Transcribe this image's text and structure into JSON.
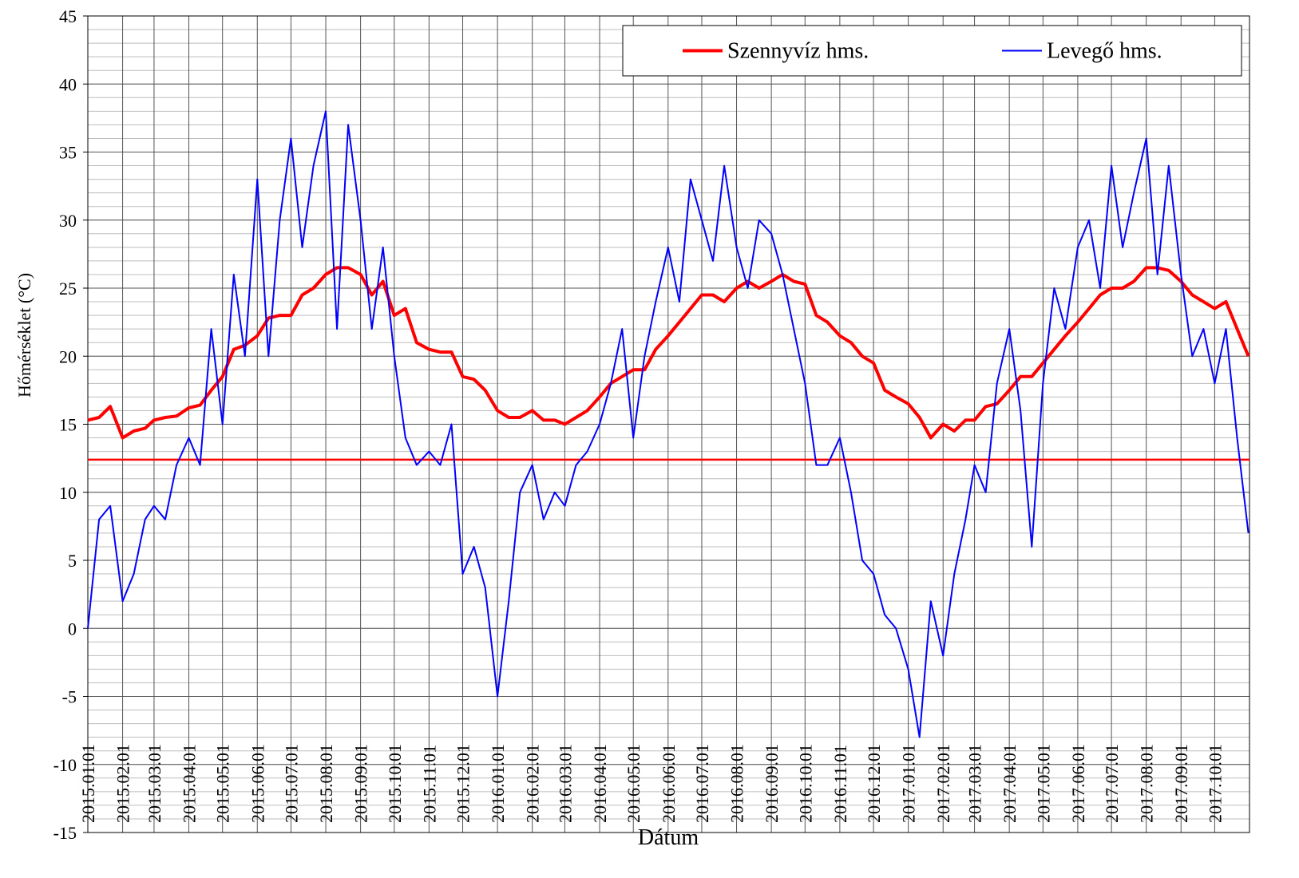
{
  "chart_data": {
    "type": "line",
    "xlabel": "Dátum",
    "ylabel": "Hőmérséklet (°C)",
    "x": [
      "2015.01.01",
      "2015.01.11",
      "2015.01.21",
      "2015.02.01",
      "2015.02.11",
      "2015.02.21",
      "2015.03.01",
      "2015.03.11",
      "2015.03.21",
      "2015.04.01",
      "2015.04.11",
      "2015.04.21",
      "2015.05.01",
      "2015.05.11",
      "2015.05.21",
      "2015.06.01",
      "2015.06.11",
      "2015.06.21",
      "2015.07.01",
      "2015.07.11",
      "2015.07.21",
      "2015.08.01",
      "2015.08.11",
      "2015.08.21",
      "2015.09.01",
      "2015.09.11",
      "2015.09.21",
      "2015.10.01",
      "2015.10.11",
      "2015.10.21",
      "2015.11.01",
      "2015.11.11",
      "2015.11.21",
      "2015.12.01",
      "2015.12.11",
      "2015.12.21",
      "2016.01.01",
      "2016.01.11",
      "2016.01.21",
      "2016.02.01",
      "2016.02.11",
      "2016.02.21",
      "2016.03.01",
      "2016.03.11",
      "2016.03.21",
      "2016.04.01",
      "2016.04.11",
      "2016.04.21",
      "2016.05.01",
      "2016.05.11",
      "2016.05.21",
      "2016.06.01",
      "2016.06.11",
      "2016.06.21",
      "2016.07.01",
      "2016.07.11",
      "2016.07.21",
      "2016.08.01",
      "2016.08.11",
      "2016.08.21",
      "2016.09.01",
      "2016.09.11",
      "2016.09.21",
      "2016.10.01",
      "2016.10.11",
      "2016.10.21",
      "2016.11.01",
      "2016.11.11",
      "2016.11.21",
      "2016.12.01",
      "2016.12.11",
      "2016.12.21",
      "2017.01.01",
      "2017.01.11",
      "2017.01.21",
      "2017.02.01",
      "2017.02.11",
      "2017.02.21",
      "2017.03.01",
      "2017.03.11",
      "2017.03.21",
      "2017.04.01",
      "2017.04.11",
      "2017.04.21",
      "2017.05.01",
      "2017.05.11",
      "2017.05.21",
      "2017.06.01",
      "2017.06.11",
      "2017.06.21",
      "2017.07.01",
      "2017.07.11",
      "2017.07.21",
      "2017.08.01",
      "2017.08.11",
      "2017.08.21",
      "2017.09.01",
      "2017.09.11",
      "2017.09.21",
      "2017.10.01",
      "2017.10.11",
      "2017.10.21",
      "2017.10.31"
    ],
    "series": [
      {
        "name": "Szennyvíz hms.",
        "color": "#ff0000",
        "width": 4,
        "values": [
          15.3,
          15.5,
          16.3,
          14.0,
          14.5,
          14.7,
          15.3,
          15.5,
          15.6,
          16.2,
          16.4,
          17.5,
          18.5,
          20.5,
          20.8,
          21.5,
          22.8,
          23.0,
          23.0,
          24.5,
          25.0,
          26.0,
          26.5,
          26.5,
          26.0,
          24.5,
          25.5,
          23.0,
          23.5,
          21.0,
          20.5,
          20.3,
          20.3,
          18.5,
          18.3,
          17.5,
          16.0,
          15.5,
          15.5,
          16.0,
          15.3,
          15.3,
          15.0,
          15.5,
          16.0,
          17.0,
          18.0,
          18.5,
          19.0,
          19.0,
          20.5,
          21.5,
          22.5,
          23.5,
          24.5,
          24.5,
          24.0,
          25.0,
          25.5,
          25.0,
          25.5,
          26.0,
          25.5,
          25.3,
          23.0,
          22.5,
          21.5,
          21.0,
          20.0,
          19.5,
          17.5,
          17.0,
          16.5,
          15.5,
          14.0,
          15.0,
          14.5,
          15.3,
          15.3,
          16.3,
          16.5,
          17.5,
          18.5,
          18.5,
          19.5,
          20.5,
          21.5,
          22.5,
          23.5,
          24.5,
          25.0,
          25.0,
          25.5,
          26.5,
          26.5,
          26.3,
          25.5,
          24.5,
          24.0,
          23.5,
          24.0,
          22.0,
          20.0
        ]
      },
      {
        "name": "Levegő hms.",
        "color": "#0000ff",
        "width": 2,
        "values": [
          0,
          8,
          9,
          2,
          4,
          8,
          9,
          8,
          12,
          14,
          12,
          22,
          15,
          26,
          20,
          33,
          20,
          30,
          36,
          28,
          34,
          38,
          22,
          37,
          30,
          22,
          28,
          20,
          14,
          12,
          13,
          12,
          15,
          4,
          6,
          3,
          -5,
          2,
          10,
          12,
          8,
          10,
          9,
          12,
          13,
          15,
          18,
          22,
          14,
          20,
          24,
          28,
          24,
          33,
          30,
          27,
          34,
          28,
          25,
          30,
          29,
          26,
          22,
          18,
          12,
          12,
          14,
          10,
          5,
          4,
          1,
          0,
          -3,
          -8,
          2,
          -2,
          4,
          8,
          12,
          10,
          18,
          22,
          16,
          6,
          18,
          25,
          22,
          28,
          30,
          25,
          34,
          28,
          32,
          36,
          26,
          34,
          26,
          20,
          22,
          18,
          22,
          14,
          7
        ]
      }
    ],
    "hline": 12.4,
    "hline_color": "#ff0000",
    "xlim": [
      "2015.01.01",
      "2017.11.01"
    ],
    "xticks": [
      "2015.01.01",
      "2015.02.01",
      "2015.03.01",
      "2015.04.01",
      "2015.05.01",
      "2015.06.01",
      "2015.07.01",
      "2015.08.01",
      "2015.09.01",
      "2015.10.01",
      "2015.11.01",
      "2015.12.01",
      "2016.01.01",
      "2016.02.01",
      "2016.03.01",
      "2016.04.01",
      "2016.05.01",
      "2016.06.01",
      "2016.07.01",
      "2016.08.01",
      "2016.09.01",
      "2016.10.01",
      "2016.11.01",
      "2016.12.01",
      "2017.01.01",
      "2017.02.01",
      "2017.03.01",
      "2017.04.01",
      "2017.05.01",
      "2017.06.01",
      "2017.07.01",
      "2017.08.01",
      "2017.09.01",
      "2017.10.01"
    ],
    "ylim": [
      -15,
      45
    ],
    "yticks": [
      -15,
      -10,
      -5,
      0,
      5,
      10,
      15,
      20,
      25,
      30,
      35,
      40,
      45
    ],
    "grid": true,
    "minor_grid_step": 1,
    "legend": "top-right"
  }
}
